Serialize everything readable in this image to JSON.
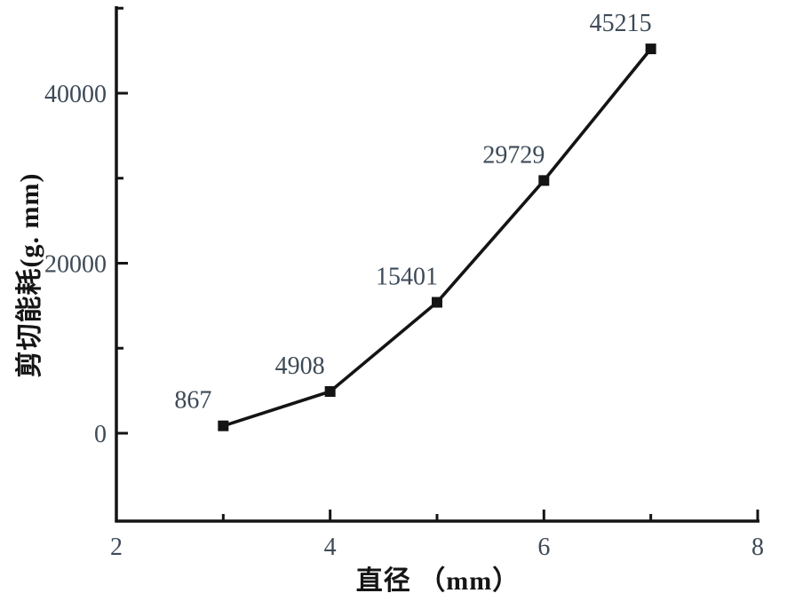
{
  "chart_data": {
    "type": "line",
    "title": "",
    "xlabel": "直径 （mm）",
    "ylabel": "剪切能耗(g. mm)",
    "series": [
      {
        "name": "剪切能耗",
        "x": [
          3,
          4,
          5,
          6,
          7
        ],
        "values": [
          867,
          4908,
          15401,
          29729,
          45215
        ],
        "point_labels": [
          "867",
          "4908",
          "15401",
          "29729",
          "45215"
        ],
        "marker": "filled-square",
        "color": "#141414"
      }
    ],
    "xlim": [
      2,
      8
    ],
    "ylim": [
      -10000,
      50500
    ],
    "x_ticks_major": [
      2,
      4,
      6,
      8
    ],
    "x_tick_labels": [
      "2",
      "4",
      "6",
      "8"
    ],
    "x_ticks_minor": [
      3,
      5,
      7
    ],
    "y_ticks_major": [
      0,
      20000,
      40000
    ],
    "y_tick_labels": [
      "0",
      "20000",
      "40000"
    ],
    "y_ticks_minor": [
      10000,
      30000,
      50000
    ],
    "grid": false,
    "legend_position": "none",
    "colors": {
      "line": "#141414",
      "marker": "#141414",
      "axis": "#141414",
      "tick_label": "#3d4a57",
      "annotation": "#3d4a57",
      "axis_label": "#151515",
      "background": "#ffffff"
    }
  }
}
